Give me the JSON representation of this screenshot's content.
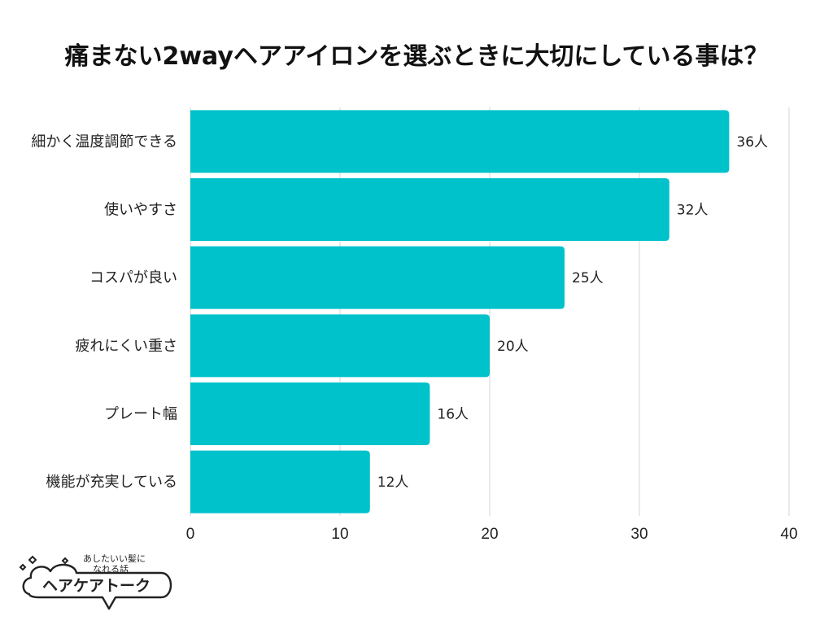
{
  "chart_data": {
    "type": "bar",
    "orientation": "horizontal",
    "title": "痛まない2wayヘアアイロンを選ぶときに大切にしている事は？",
    "categories": [
      "細かく温度調節できる",
      "使いやすさ",
      "コスパが良い",
      "疲れにくい重さ",
      "プレート幅",
      "機能が充実している"
    ],
    "values": [
      36,
      32,
      25,
      20,
      16,
      12
    ],
    "value_labels": [
      "36人",
      "32人",
      "25人",
      "20人",
      "16人",
      "12人"
    ],
    "xlim": [
      0,
      40
    ],
    "x_ticks": [
      0,
      10,
      20,
      30,
      40
    ],
    "x_tick_labels": [
      "0",
      "10",
      "20",
      "30",
      "40"
    ],
    "grid": true,
    "bar_color": "#00C2CB"
  },
  "logo": {
    "tagline_line1": "あしたいい髪に",
    "tagline_line2": "なれる話",
    "name": "ヘアケアトーク"
  }
}
